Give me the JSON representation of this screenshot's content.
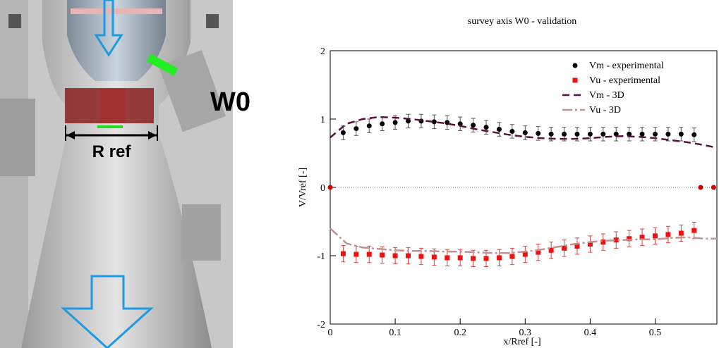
{
  "figure": {
    "labels": [
      "W0",
      "R ref"
    ]
  },
  "chart_data": {
    "type": "line",
    "title": "survey axis W0 - validation",
    "x_label": "x/Rref [-]",
    "y_label": "V/Vref [-]",
    "xlim": [
      0,
      0.595
    ],
    "ylim": [
      -2,
      2
    ],
    "xticks": [
      0,
      0.1,
      0.2,
      0.3,
      0.4,
      0.5
    ],
    "yticks": [
      -2,
      -1,
      0,
      1,
      2
    ],
    "legend": "top-right",
    "series": [
      {
        "name": "Vm - experimental",
        "color": "#000000",
        "marker": "circle",
        "x": [
          0.02,
          0.04,
          0.06,
          0.08,
          0.1,
          0.12,
          0.14,
          0.16,
          0.18,
          0.2,
          0.22,
          0.24,
          0.26,
          0.28,
          0.3,
          0.32,
          0.34,
          0.36,
          0.38,
          0.4,
          0.42,
          0.44,
          0.46,
          0.48,
          0.5,
          0.52,
          0.54,
          0.56
        ],
        "values": [
          0.8,
          0.86,
          0.9,
          0.93,
          0.95,
          0.97,
          0.97,
          0.96,
          0.95,
          0.93,
          0.91,
          0.88,
          0.85,
          0.82,
          0.8,
          0.79,
          0.78,
          0.78,
          0.78,
          0.78,
          0.78,
          0.78,
          0.78,
          0.78,
          0.78,
          0.78,
          0.78,
          0.77
        ],
        "errors": [
          0.1,
          0.1,
          0.1,
          0.1,
          0.1,
          0.1,
          0.1,
          0.1,
          0.1,
          0.1,
          0.1,
          0.1,
          0.1,
          0.1,
          0.1,
          0.1,
          0.1,
          0.1,
          0.1,
          0.1,
          0.1,
          0.1,
          0.1,
          0.1,
          0.1,
          0.1,
          0.1,
          0.1
        ]
      },
      {
        "name": "Vu - experimental",
        "color": "#ee1111",
        "marker": "square",
        "x": [
          0.02,
          0.04,
          0.06,
          0.08,
          0.1,
          0.12,
          0.14,
          0.16,
          0.18,
          0.2,
          0.22,
          0.24,
          0.26,
          0.28,
          0.3,
          0.32,
          0.34,
          0.36,
          0.38,
          0.4,
          0.42,
          0.44,
          0.46,
          0.48,
          0.5,
          0.52,
          0.54,
          0.56
        ],
        "values": [
          -0.97,
          -0.98,
          -0.98,
          -0.99,
          -1.0,
          -1.0,
          -1.01,
          -1.02,
          -1.03,
          -1.03,
          -1.04,
          -1.04,
          -1.03,
          -1.01,
          -0.98,
          -0.95,
          -0.92,
          -0.89,
          -0.86,
          -0.83,
          -0.8,
          -0.77,
          -0.75,
          -0.73,
          -0.71,
          -0.69,
          -0.67,
          -0.63
        ],
        "errors": [
          0.12,
          0.12,
          0.12,
          0.12,
          0.12,
          0.12,
          0.12,
          0.12,
          0.12,
          0.12,
          0.12,
          0.12,
          0.12,
          0.12,
          0.12,
          0.12,
          0.12,
          0.12,
          0.12,
          0.12,
          0.12,
          0.12,
          0.12,
          0.12,
          0.12,
          0.12,
          0.12,
          0.12
        ]
      },
      {
        "name": "Vm - 3D",
        "color": "#5a1040",
        "dash": "10,6",
        "x": [
          0,
          0.025,
          0.05,
          0.075,
          0.1,
          0.125,
          0.15,
          0.175,
          0.2,
          0.225,
          0.25,
          0.275,
          0.3,
          0.325,
          0.35,
          0.375,
          0.4,
          0.425,
          0.45,
          0.475,
          0.5,
          0.525,
          0.55,
          0.575,
          0.595
        ],
        "values": [
          0.73,
          0.93,
          1.0,
          1.03,
          1.02,
          1.0,
          0.97,
          0.94,
          0.9,
          0.85,
          0.81,
          0.77,
          0.74,
          0.72,
          0.71,
          0.71,
          0.72,
          0.74,
          0.75,
          0.74,
          0.72,
          0.69,
          0.66,
          0.62,
          0.58
        ]
      },
      {
        "name": "Vu - 3D",
        "color": "#c49090",
        "dash": "14,4,3,4",
        "x": [
          0,
          0.025,
          0.05,
          0.075,
          0.1,
          0.125,
          0.15,
          0.175,
          0.2,
          0.225,
          0.25,
          0.275,
          0.3,
          0.325,
          0.35,
          0.375,
          0.4,
          0.425,
          0.45,
          0.475,
          0.5,
          0.525,
          0.55,
          0.575,
          0.595
        ],
        "values": [
          -0.6,
          -0.82,
          -0.88,
          -0.9,
          -0.92,
          -0.93,
          -0.93,
          -0.94,
          -0.94,
          -0.95,
          -0.96,
          -0.96,
          -0.94,
          -0.91,
          -0.87,
          -0.83,
          -0.8,
          -0.78,
          -0.77,
          -0.76,
          -0.76,
          -0.74,
          -0.73,
          -0.75,
          -0.75
        ]
      },
      {
        "color": "#cc0000",
        "marker": "circle",
        "x": [
          0,
          0.57,
          0.59
        ],
        "values": [
          0,
          0,
          0
        ]
      }
    ]
  }
}
